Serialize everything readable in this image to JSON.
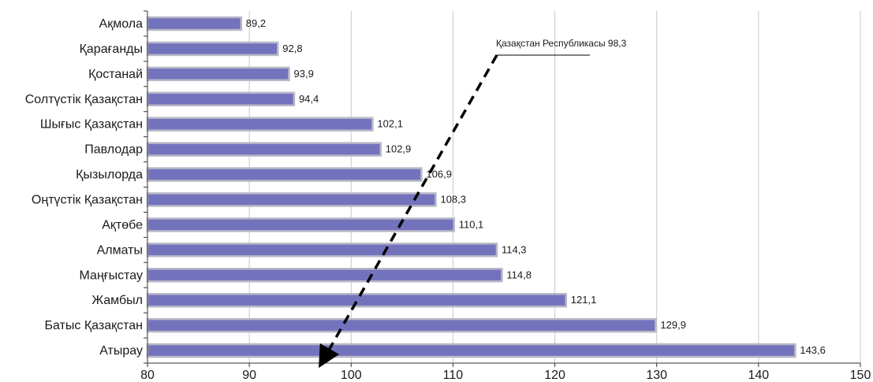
{
  "chart_data": {
    "type": "bar",
    "orientation": "horizontal",
    "categories": [
      "Ақмола",
      "Қарағанды",
      "Қостанай",
      "Солтүстік Қазақстан",
      "Шығыс Қазақстан",
      "Павлодар",
      "Қызылорда",
      "Оңтүстік Қазақстан",
      "Ақтөбе",
      "Алматы",
      "Маңғыстау",
      "Жамбыл",
      "Батыс Қазақстан",
      "Атырау"
    ],
    "values": [
      89.2,
      92.8,
      93.9,
      94.4,
      102.1,
      102.9,
      106.9,
      108.3,
      110.1,
      114.3,
      114.8,
      121.1,
      129.9,
      143.6
    ],
    "value_labels": [
      "89,2",
      "92,8",
      "93,9",
      "94,4",
      "102,1",
      "102,9",
      "106,9",
      "108,3",
      "110,1",
      "114,3",
      "114,8",
      "121,1",
      "129,9",
      "143,6"
    ],
    "xlim": [
      80,
      150
    ],
    "xticks": [
      80,
      90,
      100,
      110,
      120,
      130,
      140,
      150
    ],
    "title": "",
    "xlabel": "",
    "ylabel": "",
    "grid": "vertical",
    "bar_color": "#7373bd",
    "bar_edge_color": "#b8b8c8",
    "annotation": {
      "text": "Қазақстан  Республикасы 98,3",
      "value": 98.3,
      "style": "dashed arrow"
    }
  }
}
